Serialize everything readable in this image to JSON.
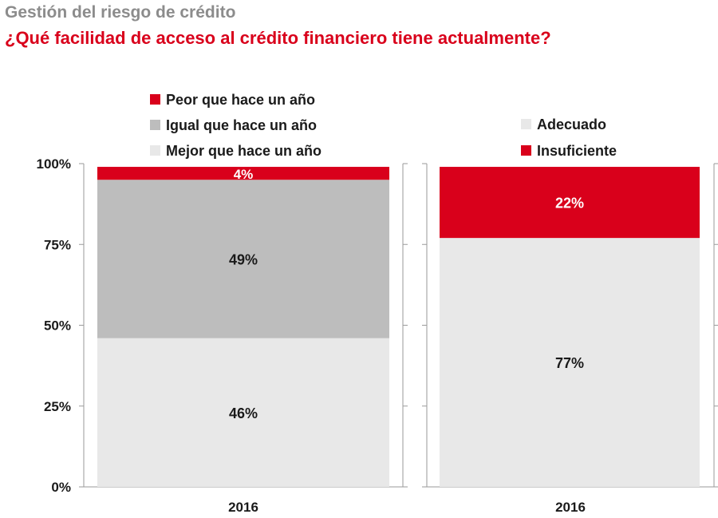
{
  "header": {
    "section": "Gestión del riesgo de crédito",
    "title": "¿Qué facilidad de acceso al crédito financiero tiene actualmente?"
  },
  "colors": {
    "red": "#d9001b",
    "gray": "#bdbdbd",
    "light": "#e8e8e8",
    "axis": "#9a9a9a"
  },
  "chart_data": [
    {
      "type": "bar",
      "stacked": true,
      "categories": [
        "2016"
      ],
      "ylim": [
        0,
        100
      ],
      "yticks": [
        "0%",
        "25%",
        "50%",
        "75%",
        "100%"
      ],
      "legend_position": "top",
      "series": [
        {
          "name": "Mejor que hace un año",
          "values": [
            46
          ],
          "label": "46%",
          "color": "#e8e8e8"
        },
        {
          "name": "Igual que hace un año",
          "values": [
            49
          ],
          "label": "49%",
          "color": "#bdbdbd"
        },
        {
          "name": "Peor que hace un año",
          "values": [
            4
          ],
          "label": "4%",
          "color": "#d9001b"
        }
      ]
    },
    {
      "type": "bar",
      "stacked": true,
      "categories": [
        "2016"
      ],
      "ylim": [
        0,
        100
      ],
      "legend_position": "top",
      "series": [
        {
          "name": "Adecuado",
          "values": [
            77
          ],
          "label": "77%",
          "color": "#e8e8e8"
        },
        {
          "name": "Insuficiente",
          "values": [
            22
          ],
          "label": "22%",
          "color": "#d9001b"
        }
      ]
    }
  ]
}
